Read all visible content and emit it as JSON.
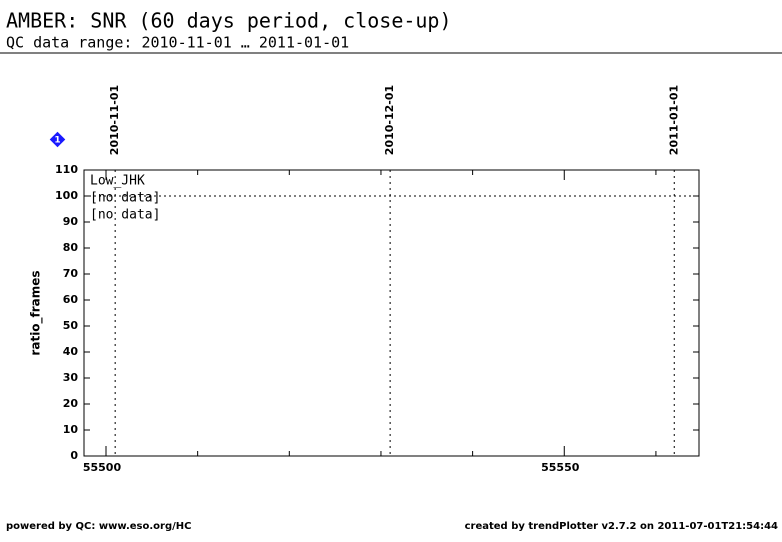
{
  "chart_data": {
    "type": "line",
    "title": "AMBER: SNR (60 days period, close-up)",
    "subtitle": "QC data range: 2010-11-01 … 2011-01-01",
    "y_label": "ratio_frames",
    "legend_title": "Low_JHK",
    "legend": "upper left",
    "x": [],
    "series": [
      {
        "name": "[no data]",
        "color": "#000000",
        "values": []
      },
      {
        "name": "[no data]",
        "color": "#ff0000",
        "values": []
      }
    ],
    "xlim": [
      55497.6,
      55564.7
    ],
    "xticks": [
      55500,
      55550
    ],
    "xticks_minor": [
      55510,
      55520,
      55530,
      55540,
      55560
    ],
    "ylim": [
      0,
      110
    ],
    "yticks": [
      0,
      10,
      20,
      30,
      40,
      50,
      60,
      70,
      80,
      90,
      100,
      110
    ],
    "reference_line": 100,
    "date_markers": [
      {
        "x": 55501,
        "label": "2010-11-01"
      },
      {
        "x": 55531,
        "label": "2010-12-01"
      },
      {
        "x": 55562,
        "label": "2011-01-01"
      }
    ],
    "note_marker": "1",
    "footer_left": "powered by QC: www.eso.org/HC",
    "footer_right": "created by trendPlotter v2.7.2 on 2011-07-01T21:54:44"
  }
}
